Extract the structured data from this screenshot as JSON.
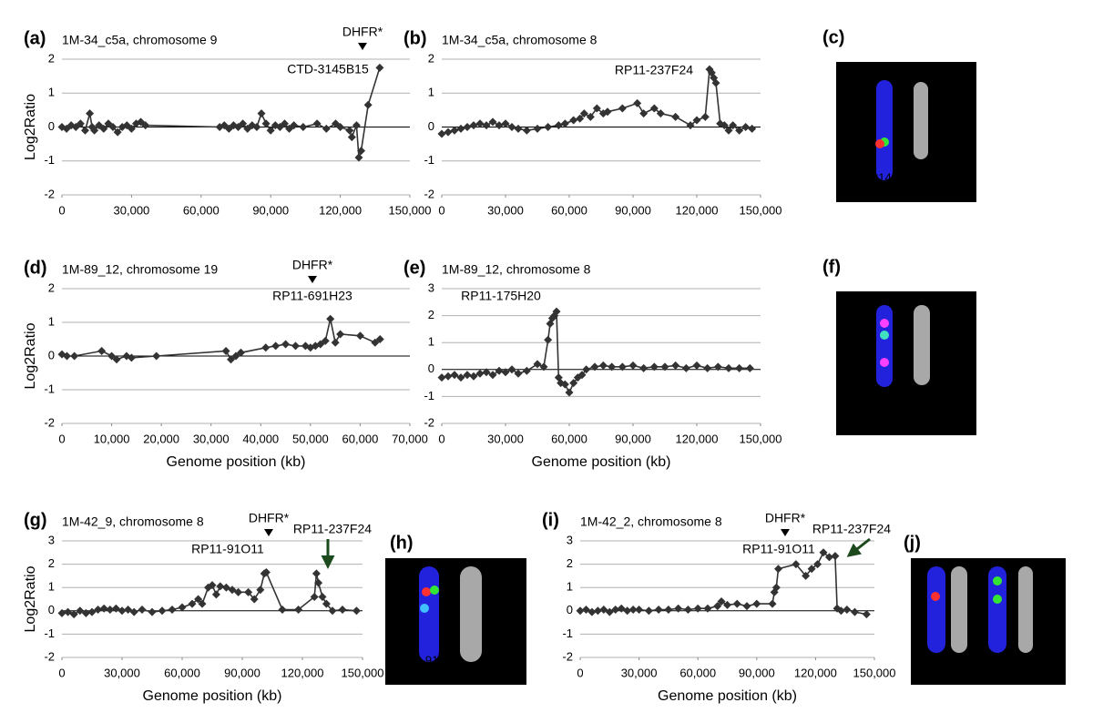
{
  "chart_data": [
    {
      "type": "line",
      "panel": "(a)",
      "title": "1M-34_c5a, chromosome 9",
      "y_label": "Log2Ratio",
      "x": [
        0,
        2000,
        4000,
        6000,
        8000,
        10000,
        12000,
        13000,
        14000,
        16000,
        18000,
        20000,
        22000,
        24000,
        26000,
        28000,
        30000,
        32000,
        34000,
        36000,
        68000,
        70000,
        72000,
        74000,
        76000,
        78000,
        80000,
        82000,
        84000,
        86000,
        88000,
        90000,
        92000,
        94000,
        96000,
        98000,
        100000,
        104000,
        110000,
        114000,
        118000,
        120000,
        124000,
        125000,
        127000,
        128000,
        129000,
        132000,
        137000
      ],
      "series": [
        {
          "color": "#333333",
          "values": [
            0,
            -0.05,
            0.05,
            0,
            0.1,
            -0.1,
            0.4,
            0,
            -0.1,
            0.05,
            -0.05,
            0.1,
            0,
            -0.15,
            0,
            0.05,
            -0.05,
            0.1,
            0.15,
            0.05,
            0,
            0.05,
            -0.05,
            0.05,
            0,
            0.1,
            -0.05,
            0.05,
            0,
            0.4,
            0.1,
            -0.1,
            0.05,
            0,
            0.1,
            -0.05,
            0.05,
            0,
            0.1,
            -0.05,
            0.1,
            0,
            -0.1,
            -0.3,
            0.05,
            -0.9,
            -0.7,
            0.65,
            1.75
          ]
        }
      ],
      "xlim": [
        0,
        150000
      ],
      "ylim": [
        -2,
        2
      ],
      "xticks": [
        0,
        {
          "value": 30000,
          "label": "30,000"
        },
        {
          "value": 60000,
          "label": "60,000"
        },
        {
          "value": 90000,
          "label": "90,000"
        },
        {
          "value": 120000,
          "label": "120,000"
        },
        {
          "value": 150000,
          "label": "150,000"
        }
      ],
      "yticks": [
        -2,
        -1,
        0,
        1,
        2
      ],
      "grid": true,
      "annotations": [
        {
          "text": "DHFR*",
          "color": "#000000"
        },
        {
          "text": "CTD-3145B15",
          "color": "#e8281e"
        }
      ]
    },
    {
      "type": "line",
      "panel": "(b)",
      "title": "1M-34_c5a, chromosome 8",
      "x": [
        0,
        3000,
        6000,
        9000,
        12000,
        15000,
        18000,
        21000,
        24000,
        27000,
        30000,
        33000,
        36000,
        40000,
        45000,
        50000,
        55000,
        58000,
        62000,
        65000,
        67000,
        70000,
        73000,
        76000,
        78000,
        85000,
        92000,
        95000,
        100000,
        103000,
        110000,
        117000,
        120000,
        124000,
        126000,
        127000,
        128000,
        129000,
        131000,
        133000,
        135000,
        137000,
        140000,
        143000,
        146000
      ],
      "series": [
        {
          "color": "#333333",
          "values": [
            -0.2,
            -0.15,
            -0.1,
            -0.05,
            0,
            0.05,
            0.1,
            0.05,
            0.15,
            0.05,
            0.1,
            0,
            -0.05,
            -0.1,
            -0.05,
            0,
            0.05,
            0.1,
            0.2,
            0.25,
            0.4,
            0.3,
            0.55,
            0.4,
            0.45,
            0.55,
            0.7,
            0.4,
            0.55,
            0.4,
            0.3,
            0.05,
            0.2,
            0.3,
            1.7,
            1.6,
            1.45,
            1.3,
            0.1,
            0.05,
            -0.1,
            0.05,
            -0.1,
            0,
            -0.05
          ]
        }
      ],
      "xlim": [
        0,
        150000
      ],
      "ylim": [
        -2,
        2
      ],
      "xticks": [
        0,
        {
          "value": 30000,
          "label": "30,000"
        },
        {
          "value": 60000,
          "label": "60,000"
        },
        {
          "value": 90000,
          "label": "90,000"
        },
        {
          "value": 120000,
          "label": "120,000"
        },
        {
          "value": 150000,
          "label": "150,000"
        }
      ],
      "yticks": [
        -2,
        -1,
        0,
        1,
        2
      ],
      "grid": true,
      "annotations": [
        {
          "text": "RP11-237F24",
          "color": "#1d4a1d"
        }
      ]
    },
    {
      "type": "line",
      "panel": "(d)",
      "title": "1M-89_12, chromosome 19",
      "y_label": "Log2Ratio",
      "x_label": "Genome position (kb)",
      "x": [
        0,
        1000,
        2500,
        8000,
        10000,
        11000,
        13000,
        14000,
        19000,
        33000,
        34000,
        35000,
        36000,
        41000,
        43000,
        45000,
        47000,
        49000,
        50000,
        51000,
        52000,
        53000,
        54000,
        55000,
        56000,
        60000,
        63000,
        64000
      ],
      "series": [
        {
          "color": "#333333",
          "values": [
            0.05,
            0,
            0,
            0.15,
            0,
            -0.1,
            0,
            -0.05,
            0,
            0.15,
            -0.1,
            0,
            0.1,
            0.25,
            0.3,
            0.35,
            0.3,
            0.3,
            0.25,
            0.3,
            0.35,
            0.45,
            1.1,
            0.4,
            0.65,
            0.6,
            0.4,
            0.5
          ]
        }
      ],
      "xlim": [
        0,
        70000
      ],
      "ylim": [
        -2,
        2
      ],
      "xticks": [
        0,
        {
          "value": 10000,
          "label": "10,000"
        },
        {
          "value": 20000,
          "label": "20,000"
        },
        {
          "value": 30000,
          "label": "30,000"
        },
        {
          "value": 40000,
          "label": "40,000"
        },
        {
          "value": 50000,
          "label": "50,000"
        },
        {
          "value": 60000,
          "label": "60,000"
        },
        {
          "value": 70000,
          "label": "70,000"
        }
      ],
      "yticks": [
        -2,
        -1,
        0,
        1,
        2
      ],
      "grid": true,
      "annotations": [
        {
          "text": "DHFR*",
          "color": "#000000"
        },
        {
          "text": "RP11-691H23",
          "color": "#e8281e"
        }
      ]
    },
    {
      "type": "line",
      "panel": "(e)",
      "title": "1M-89_12, chromosome 8",
      "x_label": "Genome position (kb)",
      "x": [
        0,
        3000,
        6000,
        9000,
        12000,
        15000,
        18000,
        21000,
        24000,
        27000,
        30000,
        33000,
        36000,
        40000,
        45000,
        48000,
        50000,
        51000,
        52000,
        53000,
        54000,
        55000,
        56000,
        58000,
        60000,
        62000,
        64000,
        66000,
        68000,
        72000,
        76000,
        80000,
        85000,
        90000,
        95000,
        100000,
        105000,
        110000,
        115000,
        120000,
        125000,
        130000,
        135000,
        140000,
        145000
      ],
      "series": [
        {
          "color": "#333333",
          "values": [
            -0.3,
            -0.25,
            -0.2,
            -0.3,
            -0.2,
            -0.25,
            -0.15,
            -0.1,
            -0.2,
            -0.05,
            -0.1,
            0,
            -0.15,
            -0.05,
            0.2,
            0.1,
            1.1,
            1.7,
            1.9,
            2,
            2.15,
            -0.3,
            -0.5,
            -0.55,
            -0.85,
            -0.5,
            -0.3,
            -0.2,
            0,
            0.1,
            0.15,
            0.1,
            0.1,
            0.15,
            0.05,
            0.1,
            0.1,
            0.15,
            0.05,
            0.15,
            0.05,
            0.1,
            0.05,
            0.05,
            0.05
          ]
        }
      ],
      "xlim": [
        0,
        150000
      ],
      "ylim": [
        -2,
        3
      ],
      "xticks": [
        0,
        {
          "value": 30000,
          "label": "30,000"
        },
        {
          "value": 60000,
          "label": "60,000"
        },
        {
          "value": 90000,
          "label": "90,000"
        },
        {
          "value": 120000,
          "label": "120,000"
        },
        {
          "value": 150000,
          "label": "150,000"
        }
      ],
      "yticks": [
        -2,
        -1,
        0,
        1,
        2,
        3
      ],
      "grid": true,
      "annotations": [
        {
          "text": "RP11-175H20",
          "color": "#1d4a1d"
        }
      ]
    },
    {
      "type": "line",
      "panel": "(g)",
      "title": "1M-42_9,   chromosome 8",
      "y_label": "Log2Ratio",
      "x_label": "Genome position (kb)",
      "x": [
        0,
        3000,
        6000,
        9000,
        12000,
        15000,
        18000,
        21000,
        24000,
        27000,
        30000,
        33000,
        36000,
        40000,
        45000,
        50000,
        55000,
        60000,
        65000,
        68000,
        70000,
        73000,
        75000,
        77000,
        79000,
        82000,
        85000,
        88000,
        93000,
        96000,
        99000,
        101000,
        102000,
        110000,
        118000,
        126000,
        127000,
        128000,
        130000,
        132000,
        135000,
        140000,
        147000
      ],
      "series": [
        {
          "color": "#333333",
          "values": [
            -0.1,
            -0.05,
            -0.15,
            0,
            -0.1,
            -0.05,
            0.05,
            0.1,
            0.05,
            0.1,
            0,
            0.05,
            -0.05,
            0.05,
            -0.05,
            0,
            0.05,
            0.15,
            0.3,
            0.5,
            0.3,
            1,
            1.1,
            0.7,
            1.05,
            1,
            0.9,
            0.8,
            0.8,
            0.5,
            0.9,
            1.6,
            1.65,
            0.05,
            0.05,
            0.6,
            1.6,
            1.2,
            0.6,
            0.3,
            0,
            0.05,
            0
          ]
        }
      ],
      "xlim": [
        0,
        150000
      ],
      "ylim": [
        -2,
        3
      ],
      "xticks": [
        0,
        {
          "value": 30000,
          "label": "30,000"
        },
        {
          "value": 60000,
          "label": "60,000"
        },
        {
          "value": 90000,
          "label": "90,000"
        },
        {
          "value": 120000,
          "label": "120,000"
        },
        {
          "value": 150000,
          "label": "150,000"
        }
      ],
      "yticks": [
        -2,
        -1,
        0,
        1,
        2,
        3
      ],
      "grid": true,
      "annotations": [
        {
          "text": "DHFR*",
          "color": "#000000"
        },
        {
          "text": "RP11-91O11",
          "color": "#e8281e"
        },
        {
          "text": "RP11-237F24",
          "color": "#1d4a1d"
        }
      ]
    },
    {
      "type": "line",
      "panel": "(i)",
      "title": "1M-42_2,   chromosome 8",
      "x_label": "Genome position (kb)",
      "x": [
        0,
        3000,
        6000,
        9000,
        12000,
        15000,
        18000,
        21000,
        24000,
        27000,
        30000,
        35000,
        40000,
        45000,
        50000,
        55000,
        60000,
        65000,
        70000,
        72000,
        75000,
        80000,
        85000,
        90000,
        98000,
        99000,
        100000,
        101000,
        110000,
        115000,
        118000,
        121000,
        124000,
        127000,
        130000,
        131000,
        133000,
        136000,
        140000,
        146000
      ],
      "series": [
        {
          "color": "#333333",
          "values": [
            0,
            0.05,
            -0.05,
            0,
            0.05,
            -0.05,
            0.05,
            0.1,
            0,
            0.05,
            0.05,
            0,
            0.05,
            0.05,
            0.1,
            0.05,
            0.1,
            0.1,
            0.2,
            0.4,
            0.25,
            0.3,
            0.2,
            0.3,
            0.3,
            0.8,
            1,
            1.8,
            2,
            1.5,
            1.8,
            2,
            2.5,
            2.3,
            2.35,
            0.1,
            0,
            0.05,
            -0.05,
            -0.15
          ]
        }
      ],
      "xlim": [
        0,
        150000
      ],
      "ylim": [
        -2,
        3
      ],
      "xticks": [
        0,
        {
          "value": 30000,
          "label": "30,000"
        },
        {
          "value": 60000,
          "label": "60,000"
        },
        {
          "value": 90000,
          "label": "90,000"
        },
        {
          "value": 120000,
          "label": "120,000"
        },
        {
          "value": 150000,
          "label": "150,000"
        }
      ],
      "yticks": [
        -2,
        -1,
        0,
        1,
        2,
        3
      ],
      "grid": true,
      "annotations": [
        {
          "text": "DHFR*",
          "color": "#000000"
        },
        {
          "text": "RP11-91O11",
          "color": "#e8281e"
        },
        {
          "text": "RP11-237F24",
          "color": "#1d4a1d"
        }
      ]
    }
  ],
  "images": [
    {
      "panel": "(c)",
      "probes": [
        {
          "text": "CTD-3145B15",
          "color": "#ff2a2a"
        },
        {
          "text": "RP11-237F24",
          "color": "#33e633"
        }
      ]
    },
    {
      "panel": "(f)",
      "probes": [
        {
          "text": "RP11-691H23",
          "color": "#ff2a2a"
        },
        {
          "text": "RP11-175H20",
          "color": "#33e633"
        }
      ]
    },
    {
      "panel": "(h)",
      "probes": [
        {
          "text": "RP11-91O11",
          "color": "#ff2a2a"
        },
        {
          "text": "RP11-237F24",
          "color": "#33e633"
        }
      ]
    },
    {
      "panel": "(j)",
      "probes": [
        {
          "text": "RP11-91O11",
          "color": "#ff2a2a"
        },
        {
          "text": "RP11-237F24",
          "color": "#33e633"
        }
      ]
    }
  ]
}
